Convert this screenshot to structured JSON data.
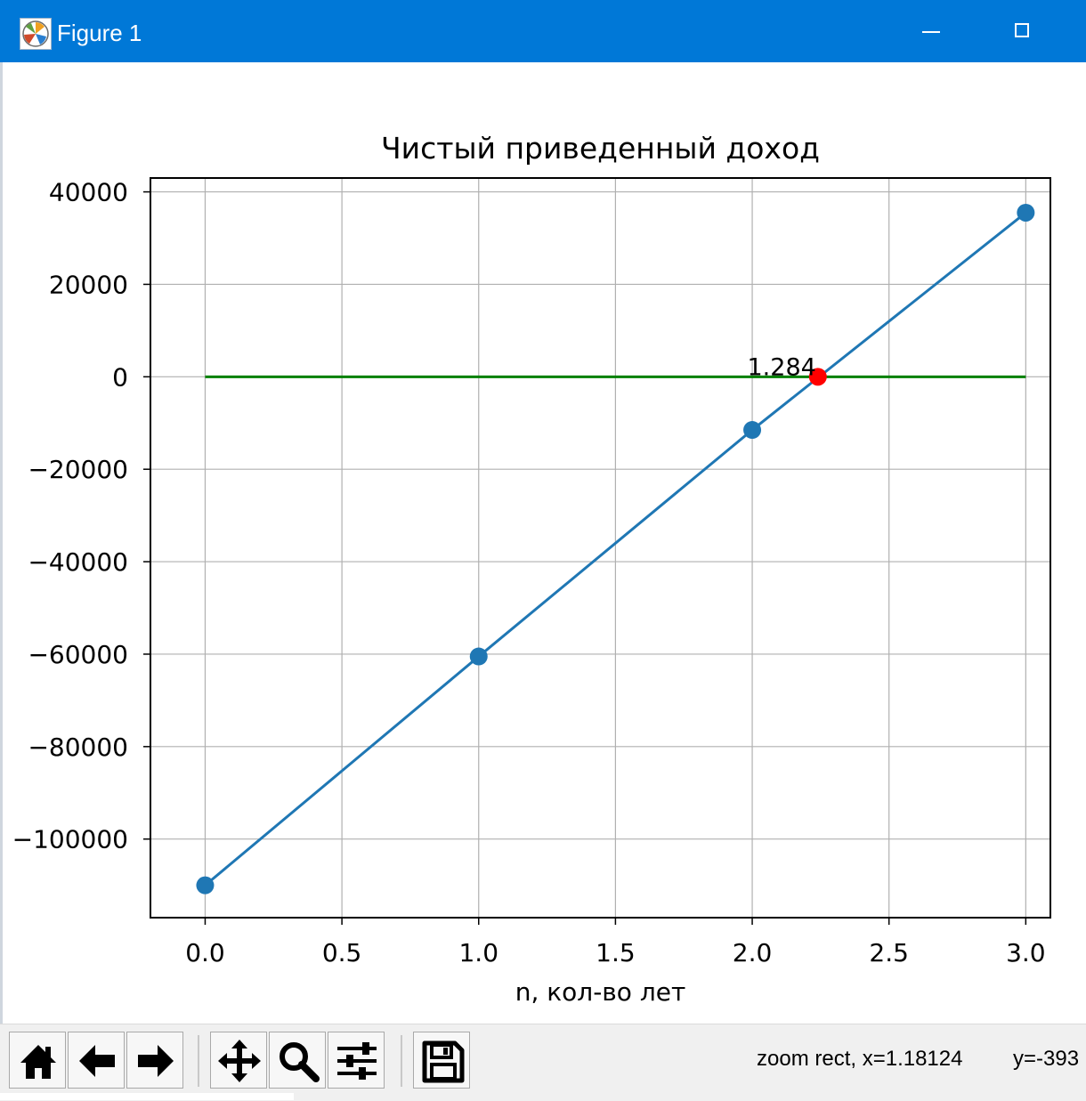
{
  "window": {
    "title": "Figure 1",
    "icon": "matplotlib-logo-icon",
    "controls": {
      "minimize": "minimize-icon",
      "maximize": "maximize-icon"
    }
  },
  "toolbar": {
    "buttons": [
      {
        "name": "home",
        "icon": "home-icon"
      },
      {
        "name": "back",
        "icon": "arrow-left-icon"
      },
      {
        "name": "forward",
        "icon": "arrow-right-icon"
      },
      {
        "name": "pan",
        "icon": "move-icon"
      },
      {
        "name": "zoom",
        "icon": "zoom-icon"
      },
      {
        "name": "configure-subplots",
        "icon": "sliders-icon"
      },
      {
        "name": "save",
        "icon": "save-icon"
      }
    ],
    "status": "zoom rect, x=1.18124",
    "status_y": "y=-393"
  },
  "chart_data": {
    "type": "line",
    "title": "Чистый приведенный доход",
    "xlabel": "n, кол-во лет",
    "ylabel": "",
    "xlim": [
      -0.2,
      3.09
    ],
    "ylim": [
      -117000,
      43000
    ],
    "xticks": [
      0.0,
      0.5,
      1.0,
      1.5,
      2.0,
      2.5,
      3.0
    ],
    "xtick_labels": [
      "0.0",
      "0.5",
      "1.0",
      "1.5",
      "2.0",
      "2.5",
      "3.0"
    ],
    "yticks": [
      40000,
      20000,
      0,
      -20000,
      -40000,
      -60000,
      -80000,
      -100000
    ],
    "ytick_labels": [
      "40000",
      "20000",
      "0",
      "−20000",
      "−40000",
      "−60000",
      "−80000",
      "−100000"
    ],
    "grid": true,
    "series": [
      {
        "x": [
          0,
          1,
          2,
          3
        ],
        "y": [
          -110000,
          -60500,
          -11500,
          35500
        ],
        "color": "#1f77b4",
        "marker": "circle"
      }
    ],
    "zero_line": {
      "x": [
        0,
        3
      ],
      "y": [
        0,
        0
      ],
      "color": "#008000"
    },
    "highlight_point": {
      "x": 2.24,
      "y": 0,
      "color": "#ff0000"
    },
    "annotation": {
      "text": "1.284",
      "x": 2.24,
      "y": 0
    }
  }
}
